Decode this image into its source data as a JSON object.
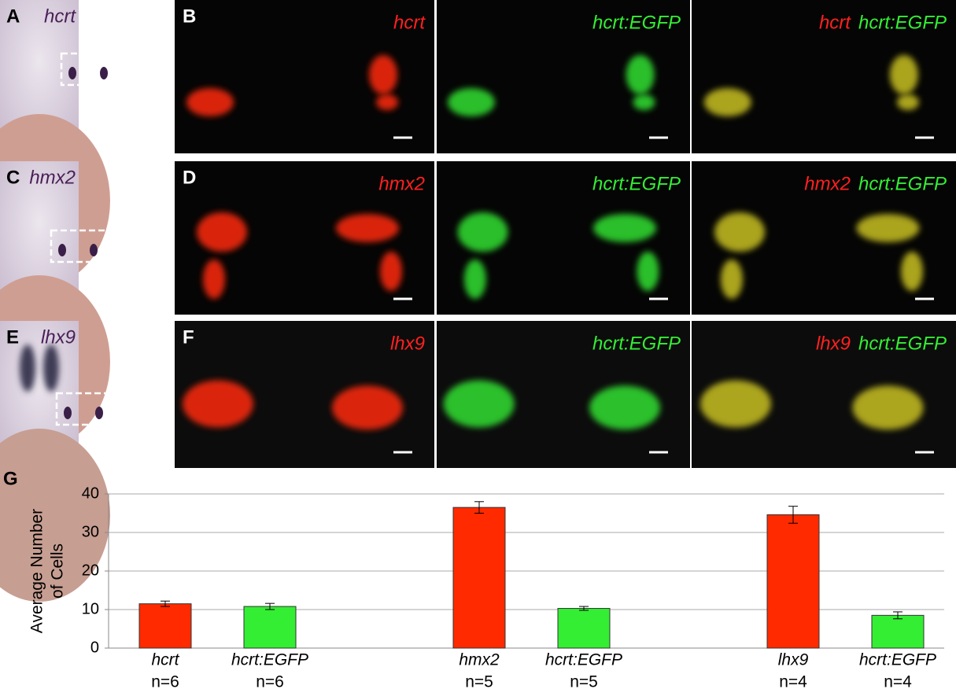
{
  "rows": [
    {
      "left": {
        "letter": "A",
        "label": "hcrt"
      },
      "right": {
        "letter": "B",
        "images": [
          {
            "labels": [
              "hcrt"
            ]
          },
          {
            "labels": [
              "hcrt:EGFP"
            ]
          },
          {
            "labels": [
              "hcrt",
              "hcrt:EGFP"
            ]
          }
        ]
      }
    },
    {
      "left": {
        "letter": "C",
        "label": "hmx2"
      },
      "right": {
        "letter": "D",
        "images": [
          {
            "labels": [
              "hmx2"
            ]
          },
          {
            "labels": [
              "hcrt:EGFP"
            ]
          },
          {
            "labels": [
              "hmx2",
              "hcrt:EGFP"
            ]
          }
        ]
      }
    },
    {
      "left": {
        "letter": "E",
        "label": "lhx9"
      },
      "right": {
        "letter": "F",
        "images": [
          {
            "labels": [
              "lhx9"
            ]
          },
          {
            "labels": [
              "hcrt:EGFP"
            ]
          },
          {
            "labels": [
              "lhx9",
              "hcrt:EGFP"
            ]
          }
        ]
      }
    }
  ],
  "chart_data": {
    "type": "bar",
    "letter": "G",
    "ylabel": [
      "Average Number",
      "of Cells"
    ],
    "categories": [
      "hcrt",
      "hcrt:EGFP",
      "hmx2",
      "hcrt:EGFP",
      "lhx9",
      "hcrt:EGFP"
    ],
    "sample_sizes": [
      "n=6",
      "n=6",
      "n=5",
      "n=5",
      "n=4",
      "n=4"
    ],
    "values": [
      11.5,
      10.8,
      36.5,
      10.3,
      34.6,
      8.5
    ],
    "errors": [
      0.7,
      0.8,
      1.5,
      0.5,
      2.2,
      0.9
    ],
    "colors": [
      "#ff2a00",
      "#33ee33",
      "#ff2a00",
      "#33ee33",
      "#ff2a00",
      "#33ee33"
    ],
    "ylim": [
      0,
      40
    ],
    "yticks": [
      0,
      10,
      20,
      30,
      40
    ],
    "grid": true
  }
}
